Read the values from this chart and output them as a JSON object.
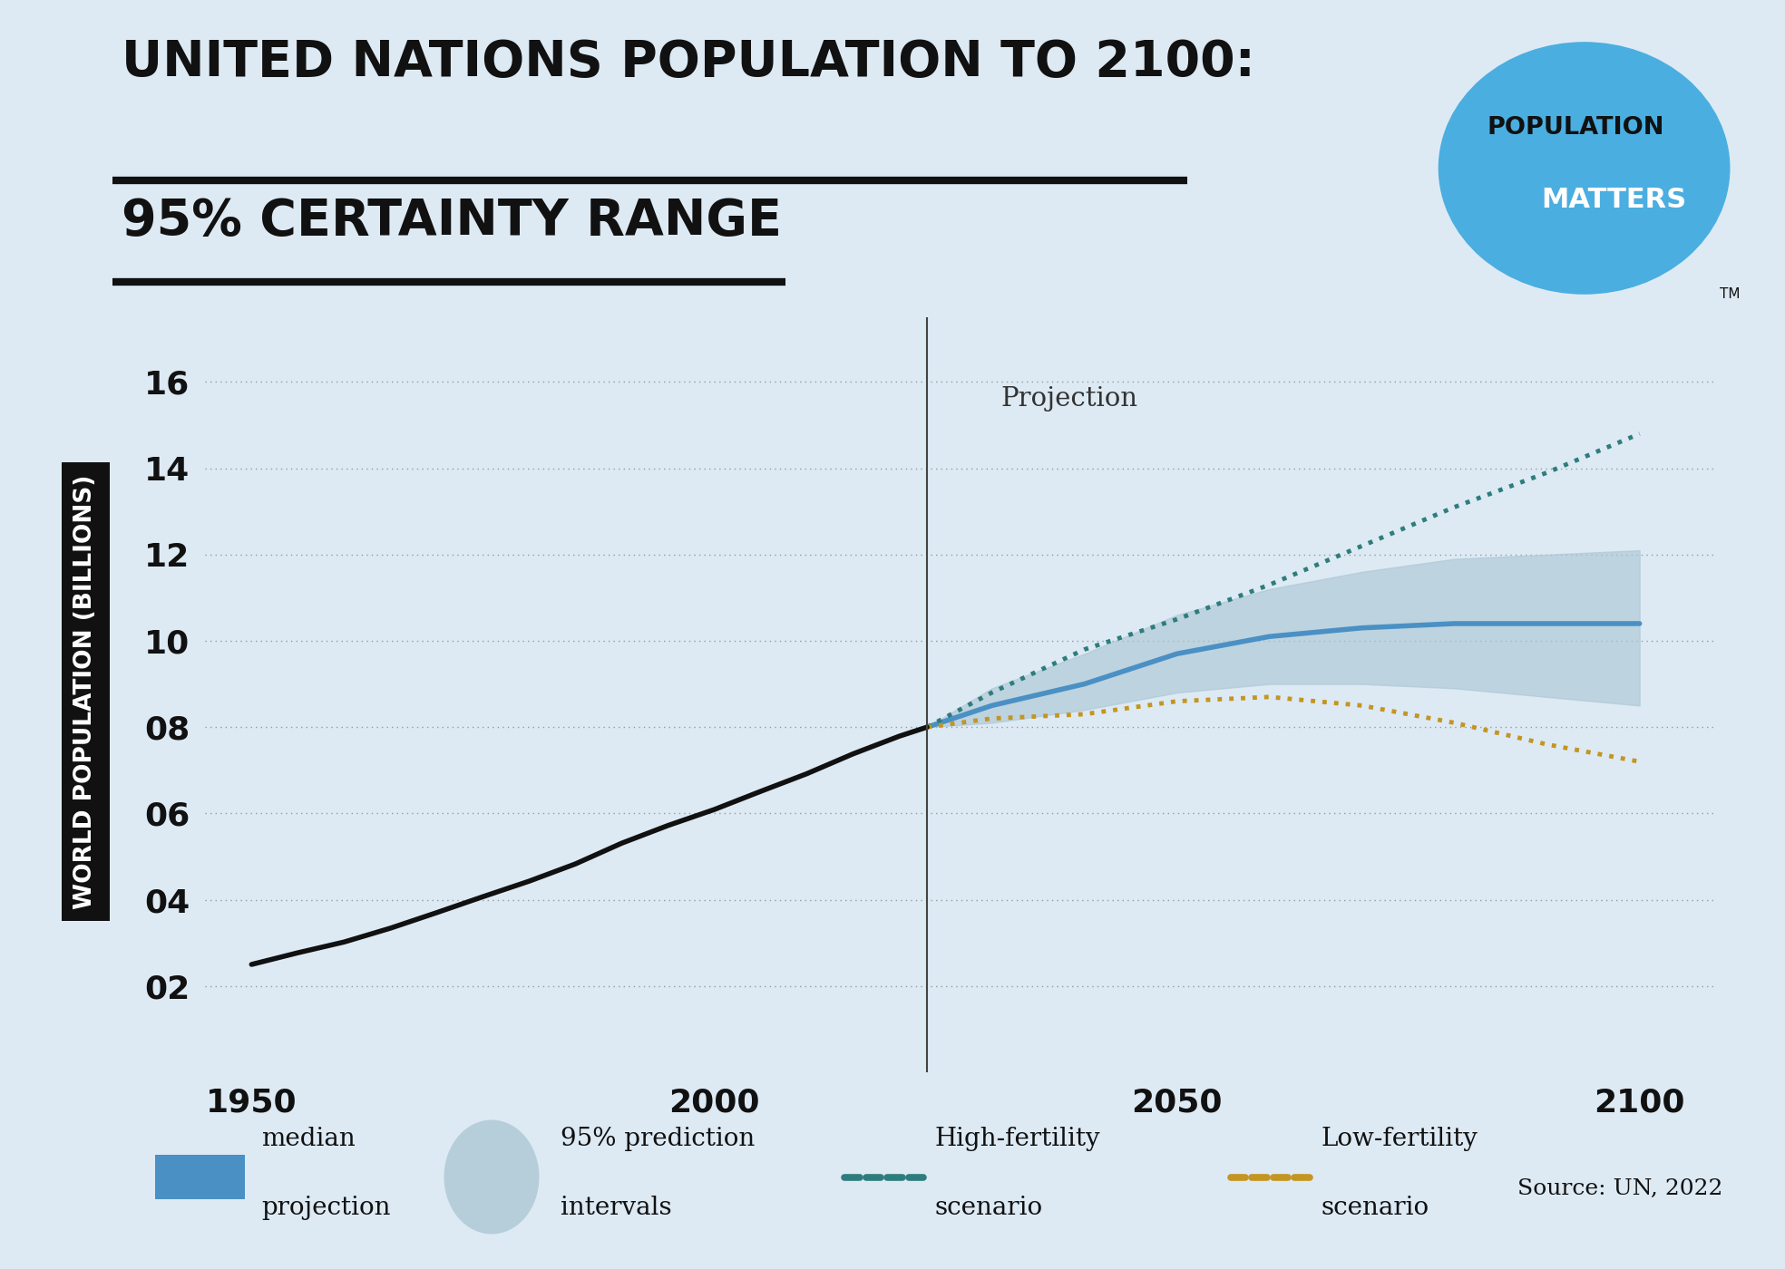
{
  "title_line1": "UNITED NATIONS POPULATION TO 2100:",
  "title_line2": "95% CERTAINTY RANGE",
  "ylabel": "WORLD POPULATION (BILLIONS)",
  "background_color": "#ddeaf4",
  "plot_background_color": "#ddeaf4",
  "xlim": [
    1945,
    2108
  ],
  "ylim": [
    0.0,
    17.5
  ],
  "yticks": [
    2,
    4,
    6,
    8,
    10,
    12,
    14,
    16
  ],
  "xticks": [
    1950,
    2000,
    2050,
    2100
  ],
  "projection_year": 2023,
  "historical_years": [
    1950,
    1955,
    1960,
    1965,
    1970,
    1975,
    1980,
    1985,
    1990,
    1995,
    2000,
    2005,
    2010,
    2015,
    2020,
    2023
  ],
  "historical_pop": [
    2.5,
    2.77,
    3.02,
    3.34,
    3.7,
    4.07,
    4.43,
    4.83,
    5.31,
    5.72,
    6.09,
    6.51,
    6.92,
    7.38,
    7.79,
    8.0
  ],
  "median_years": [
    2023,
    2030,
    2040,
    2050,
    2060,
    2070,
    2080,
    2090,
    2100
  ],
  "median_pop": [
    8.0,
    8.5,
    9.0,
    9.7,
    10.1,
    10.3,
    10.4,
    10.4,
    10.4
  ],
  "ci_upper": [
    8.0,
    8.9,
    9.7,
    10.6,
    11.2,
    11.6,
    11.9,
    12.0,
    12.1
  ],
  "ci_lower": [
    8.0,
    8.1,
    8.4,
    8.8,
    9.0,
    9.0,
    8.9,
    8.7,
    8.5
  ],
  "high_fert_years": [
    2023,
    2030,
    2040,
    2050,
    2060,
    2070,
    2080,
    2090,
    2100
  ],
  "high_fert_pop": [
    8.0,
    8.8,
    9.8,
    10.5,
    11.3,
    12.2,
    13.1,
    13.9,
    14.8
  ],
  "low_fert_years": [
    2023,
    2030,
    2040,
    2050,
    2060,
    2070,
    2080,
    2090,
    2100
  ],
  "low_fert_pop": [
    8.0,
    8.2,
    8.3,
    8.6,
    8.7,
    8.5,
    8.1,
    7.6,
    7.2
  ],
  "median_color": "#4a90c4",
  "ci_color": "#adc8d4",
  "high_fert_color": "#2e7d7d",
  "low_fert_color": "#c49520",
  "historical_color": "#111111",
  "grid_color": "#999999",
  "source_text": "Source: UN, 2022",
  "projection_label": "Projection",
  "logo_circle_color": "#4aaee0",
  "logo_text1": "POPULATION",
  "logo_text2": "MATTERS"
}
